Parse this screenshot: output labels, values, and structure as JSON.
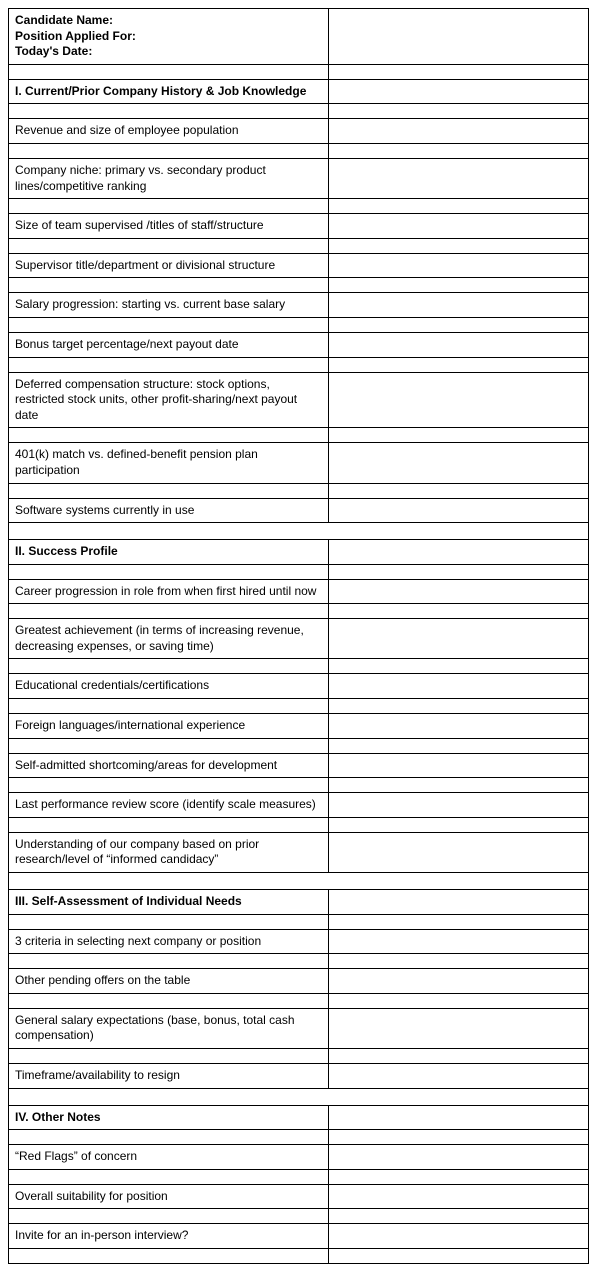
{
  "header": {
    "line1": "Candidate Name:",
    "line2": "Position Applied For:",
    "line3": "Today's Date:"
  },
  "sections": {
    "s1": {
      "title": "I. Current/Prior Company History & Job Knowledge",
      "items": [
        "Revenue and size of employee population",
        "Company niche: primary vs. secondary product lines/competitive ranking",
        "Size of team supervised /titles of staff/structure",
        "Supervisor title/department or divisional structure",
        "Salary progression: starting vs. current base salary",
        "Bonus target percentage/next payout date",
        "Deferred compensation structure: stock options, restricted stock units, other profit-sharing/next payout date",
        "401(k) match vs. defined-benefit pension plan participation",
        "Software systems currently in use"
      ]
    },
    "s2": {
      "title": "II. Success Profile",
      "items": [
        "Career progression in role from when first hired until now",
        "Greatest achievement (in terms of increasing revenue, decreasing expenses, or saving time)",
        "Educational credentials/certifications",
        "Foreign languages/international experience",
        "Self-admitted shortcoming/areas for development",
        "Last performance review score (identify scale measures)",
        "Understanding of our company based on prior research/level of “informed candidacy”"
      ]
    },
    "s3": {
      "title": "III. Self-Assessment of Individual Needs",
      "items": [
        "3 criteria in selecting next company or position",
        "Other pending offers on the table",
        "General salary expectations (base, bonus, total cash compensation)",
        "Timeframe/availability to resign"
      ]
    },
    "s4": {
      "title": "IV. Other Notes",
      "items": [
        "“Red Flags” of concern",
        "Overall suitability for position",
        "Invite for an in-person interview?"
      ]
    }
  }
}
